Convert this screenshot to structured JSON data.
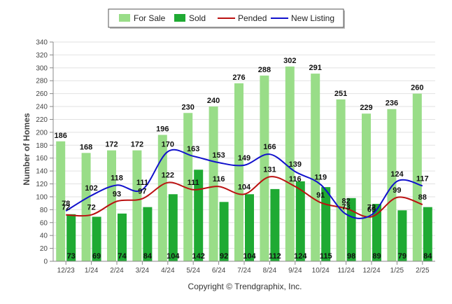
{
  "chart_data": {
    "type": "bar",
    "categories": [
      "12/23",
      "1/24",
      "2/24",
      "3/24",
      "4/24",
      "5/24",
      "6/24",
      "7/24",
      "8/24",
      "9/24",
      "10/24",
      "11/24",
      "12/24",
      "1/25",
      "2/25"
    ],
    "series": [
      {
        "name": "For Sale",
        "type": "bar",
        "color": "#99dd88",
        "values": [
          186,
          168,
          172,
          172,
          196,
          230,
          240,
          276,
          288,
          302,
          291,
          251,
          229,
          236,
          260
        ]
      },
      {
        "name": "Sold",
        "type": "bar",
        "color": "#1faa33",
        "values": [
          73,
          69,
          74,
          84,
          104,
          142,
          92,
          104,
          112,
          124,
          115,
          98,
          89,
          79,
          84
        ]
      },
      {
        "name": "Pended",
        "type": "line",
        "color": "#bb1111",
        "values": [
          72,
          72,
          93,
          97,
          122,
          111,
          116,
          104,
          131,
          116,
          91,
          82,
          69,
          99,
          88
        ]
      },
      {
        "name": "New Listing",
        "type": "line",
        "color": "#1111cc",
        "values": [
          78,
          102,
          118,
          111,
          170,
          163,
          153,
          149,
          166,
          139,
          119,
          73,
          72,
          124,
          117
        ]
      }
    ],
    "ylabel": "Number of Homes",
    "xlabel": "",
    "ylim": [
      0,
      340
    ],
    "ytick_step": 20,
    "grid": true,
    "legend": "top-center"
  },
  "footer": {
    "copyright": "Copyright © Trendgraphix, Inc."
  }
}
